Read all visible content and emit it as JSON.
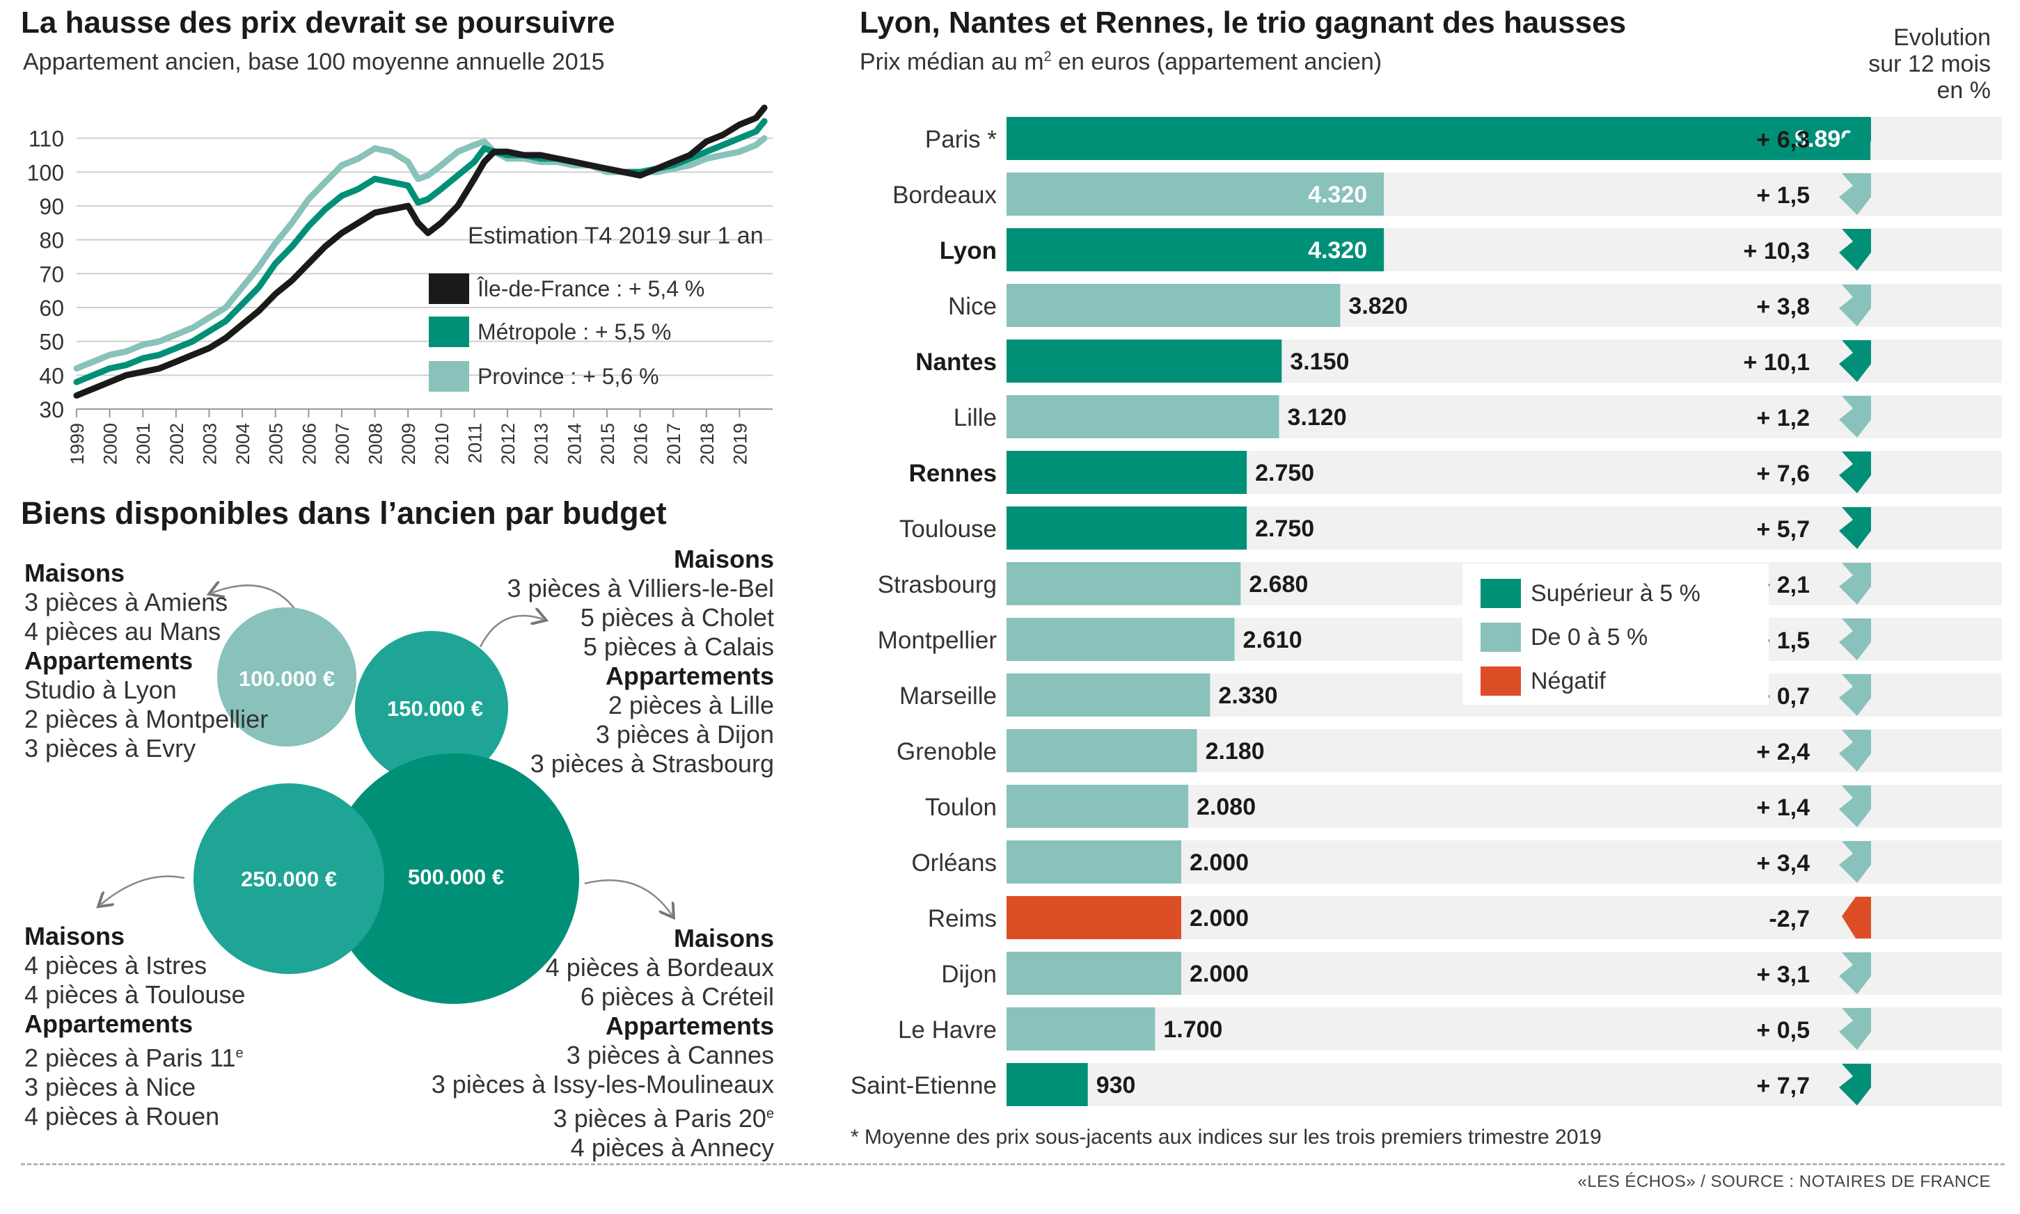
{
  "colors": {
    "dark_green": "#009077",
    "light_green": "#88c2ba",
    "negative": "#dd4e26",
    "black_line": "#1a1a1a",
    "row_bg": "#f1f1f1",
    "circle_100k": "#88c2ba",
    "circle_150k": "#1ea595",
    "circle_250k": "#1ea595",
    "circle_500k": "#009077"
  },
  "line_chart": {
    "title": "La hausse des prix devrait se poursuivre",
    "subtitle": "Appartement ancien, base 100 moyenne annuelle 2015",
    "legend_title": "Estimation T4 2019 sur 1 an",
    "legend": [
      {
        "label": "Île-de-France : + 5,4 %",
        "color": "#1a1a1a"
      },
      {
        "label": "Métropole : + 5,5 %",
        "color": "#009077"
      },
      {
        "label": "Province  : + 5,6 %",
        "color": "#88c2ba"
      }
    ]
  },
  "budget": {
    "title": "Biens disponibles dans l’ancien par budget",
    "circles": [
      {
        "label": "100.000 €"
      },
      {
        "label": "150.000 €"
      },
      {
        "label": "250.000 €"
      },
      {
        "label": "500.000 €"
      }
    ],
    "block_100k": [
      {
        "text": "Maisons",
        "h": true
      },
      {
        "text": "3 pièces à Amiens"
      },
      {
        "text": "4 pièces au Mans"
      },
      {
        "text": "Appartements",
        "h": true
      },
      {
        "text": "Studio à Lyon"
      },
      {
        "text": "2 pièces à Montpellier"
      },
      {
        "text": "3 pièces à Evry"
      }
    ],
    "block_150k": [
      {
        "text": "Maisons",
        "h": true
      },
      {
        "text": "3 pièces à Villiers-le-Bel"
      },
      {
        "text": "5 pièces à Cholet"
      },
      {
        "text": "5 pièces à Calais"
      },
      {
        "text": "Appartements",
        "h": true
      },
      {
        "text": "2 pièces à Lille"
      },
      {
        "text": "3 pièces à Dijon"
      },
      {
        "text": "3 pièces à Strasbourg"
      }
    ],
    "block_250k": [
      {
        "text": "Maisons",
        "h": true
      },
      {
        "text": "4 pièces à Istres"
      },
      {
        "text": "4 pièces à Toulouse"
      },
      {
        "text": "Appartements",
        "h": true
      },
      {
        "text": "2 pièces à Paris 11",
        "sup": "e"
      },
      {
        "text": "3 pièces à Nice"
      },
      {
        "text": "4 pièces à Rouen"
      }
    ],
    "block_500k": [
      {
        "text": "Maisons",
        "h": true
      },
      {
        "text": "4 pièces à Bordeaux"
      },
      {
        "text": "6 pièces à Créteil"
      },
      {
        "text": "Appartements",
        "h": true
      },
      {
        "text": "3 pièces à Cannes"
      },
      {
        "text": "3 pièces à Issy-les-Moulineaux"
      },
      {
        "text": "3 pièces à Paris 20",
        "sup": "e"
      },
      {
        "text": "4 pièces à Annecy"
      }
    ]
  },
  "bar_chart": {
    "title": "Lyon, Nantes et Rennes, le trio gagnant des hausses",
    "subtitle_pre": "Prix médian au m",
    "subtitle_sup": "2",
    "subtitle_post": " en euros (appartement ancien)",
    "evolution_header": [
      "Evolution",
      "sur 12 mois",
      "en %"
    ],
    "legend": [
      {
        "label": "Supérieur à 5 %",
        "cat": "high"
      },
      {
        "label": "De 0 à 5 %",
        "cat": "low"
      },
      {
        "label": "Négatif",
        "cat": "neg"
      }
    ],
    "footnote": "* Moyenne des prix sous-jacents aux indices sur les trois premiers trimestre 2019",
    "source": "«LES ÉCHOS» / SOURCE : NOTAIRES DE FRANCE"
  },
  "chart_data": [
    {
      "type": "line",
      "title": "La hausse des prix devrait se poursuivre",
      "subtitle": "Appartement ancien, base 100 moyenne annuelle 2015",
      "ylim": [
        30,
        120
      ],
      "yticks": [
        30,
        40,
        50,
        60,
        70,
        80,
        90,
        100,
        110
      ],
      "xlim": [
        1999,
        2020
      ],
      "xticks": [
        "1999",
        "2000",
        "2001",
        "2002",
        "2003",
        "2004",
        "2005",
        "2006",
        "2007",
        "2008",
        "2009",
        "2010",
        "2011",
        "2012",
        "2013",
        "2014",
        "2015",
        "2016",
        "2017",
        "2018",
        "2019"
      ],
      "grid": true,
      "series": [
        {
          "name": "Province",
          "color": "#88c2ba",
          "x": [
            1999,
            1999.5,
            2000,
            2000.5,
            2001,
            2001.5,
            2002,
            2002.5,
            2003,
            2003.5,
            2004,
            2004.5,
            2005,
            2005.5,
            2006,
            2006.5,
            2007,
            2007.5,
            2008,
            2008.5,
            2009,
            2009.3,
            2009.6,
            2010,
            2010.5,
            2011,
            2011.3,
            2011.6,
            2012,
            2012.5,
            2013,
            2013.5,
            2014,
            2014.5,
            2015,
            2015.5,
            2016,
            2016.5,
            2017,
            2017.5,
            2018,
            2018.5,
            2019,
            2019.5,
            2019.75
          ],
          "y": [
            42,
            44,
            46,
            47,
            49,
            50,
            52,
            54,
            57,
            60,
            66,
            72,
            79,
            85,
            92,
            97,
            102,
            104,
            107,
            106,
            103,
            98,
            99,
            102,
            106,
            108,
            109,
            106,
            104,
            104,
            103,
            103,
            102,
            102,
            100,
            100,
            100,
            100,
            101,
            102,
            104,
            105,
            106,
            108,
            110
          ]
        },
        {
          "name": "Métropole",
          "color": "#009077",
          "x": [
            1999,
            1999.5,
            2000,
            2000.5,
            2001,
            2001.5,
            2002,
            2002.5,
            2003,
            2003.5,
            2004,
            2004.5,
            2005,
            2005.5,
            2006,
            2006.5,
            2007,
            2007.5,
            2008,
            2008.5,
            2009,
            2009.3,
            2009.6,
            2010,
            2010.5,
            2011,
            2011.3,
            2011.6,
            2012,
            2012.5,
            2013,
            2013.5,
            2014,
            2014.5,
            2015,
            2015.5,
            2016,
            2016.5,
            2017,
            2017.5,
            2018,
            2018.5,
            2019,
            2019.5,
            2019.75
          ],
          "y": [
            38,
            40,
            42,
            43,
            45,
            46,
            48,
            50,
            53,
            56,
            61,
            66,
            73,
            78,
            84,
            89,
            93,
            95,
            98,
            97,
            96,
            91,
            92,
            95,
            99,
            103,
            107,
            106,
            105,
            105,
            104,
            104,
            103,
            102,
            101,
            100,
            100,
            101,
            102,
            104,
            106,
            108,
            110,
            112,
            115
          ]
        },
        {
          "name": "Île-de-France",
          "color": "#1a1a1a",
          "x": [
            1999,
            1999.5,
            2000,
            2000.5,
            2001,
            2001.5,
            2002,
            2002.5,
            2003,
            2003.5,
            2004,
            2004.5,
            2005,
            2005.5,
            2006,
            2006.5,
            2007,
            2007.5,
            2008,
            2008.5,
            2009,
            2009.3,
            2009.6,
            2010,
            2010.5,
            2011,
            2011.3,
            2011.6,
            2012,
            2012.5,
            2013,
            2013.5,
            2014,
            2014.5,
            2015,
            2015.5,
            2016,
            2016.5,
            2017,
            2017.5,
            2018,
            2018.5,
            2019,
            2019.5,
            2019.75
          ],
          "y": [
            34,
            36,
            38,
            40,
            41,
            42,
            44,
            46,
            48,
            51,
            55,
            59,
            64,
            68,
            73,
            78,
            82,
            85,
            88,
            89,
            90,
            85,
            82,
            85,
            90,
            98,
            103,
            106,
            106,
            105,
            105,
            104,
            103,
            102,
            101,
            100,
            99,
            101,
            103,
            105,
            109,
            111,
            114,
            116,
            119
          ]
        }
      ]
    },
    {
      "type": "bar",
      "title": "Lyon, Nantes et Rennes, le trio gagnant des hausses",
      "subtitle": "Prix médian au m2 en euros (appartement ancien)",
      "categories": [
        "Paris *",
        "Bordeaux",
        "Lyon",
        "Nice",
        "Nantes",
        "Lille",
        "Rennes",
        "Toulouse",
        "Strasbourg",
        "Montpellier",
        "Marseille",
        "Grenoble",
        "Toulon",
        "Orléans",
        "Reims",
        "Dijon",
        "Le Havre",
        "Saint-Etienne"
      ],
      "bold_categories": [
        "Lyon",
        "Nantes",
        "Rennes"
      ],
      "series": [
        {
          "name": "Prix médian au m2",
          "values": [
            9890,
            4320,
            4320,
            3820,
            3150,
            3120,
            2750,
            2750,
            2680,
            2610,
            2330,
            2180,
            2080,
            2000,
            2000,
            2000,
            1700,
            930
          ],
          "labels": [
            "9.890",
            "4.320",
            "4.320",
            "3.820",
            "3.150",
            "3.120",
            "2.750",
            "2.750",
            "2.680",
            "2.610",
            "2.330",
            "2.180",
            "2.080",
            "2.000",
            "2.000",
            "2.000",
            "1.700",
            "930"
          ]
        },
        {
          "name": "Evolution sur 12 mois en %",
          "values": [
            6.3,
            1.5,
            10.3,
            3.8,
            10.1,
            1.2,
            7.6,
            5.7,
            2.1,
            1.5,
            0.7,
            2.4,
            1.4,
            3.4,
            -2.7,
            3.1,
            0.5,
            7.7
          ],
          "labels": [
            "+ 6,3",
            "+ 1,5",
            "+ 10,3",
            "+ 3,8",
            "+ 10,1",
            "+ 1,2",
            "+ 7,6",
            "+ 5,7",
            "+ 2,1",
            "+ 1,5",
            "+ 0,7",
            "+ 2,4",
            "+ 1,4",
            "+ 3,4",
            "-2,7",
            "+ 3,1",
            "+ 0,5",
            "+ 7,7"
          ]
        }
      ],
      "legend": [
        "Supérieur à 5 %",
        "De 0 à 5 %",
        "Négatif"
      ],
      "legend_position": "middle-right"
    }
  ]
}
